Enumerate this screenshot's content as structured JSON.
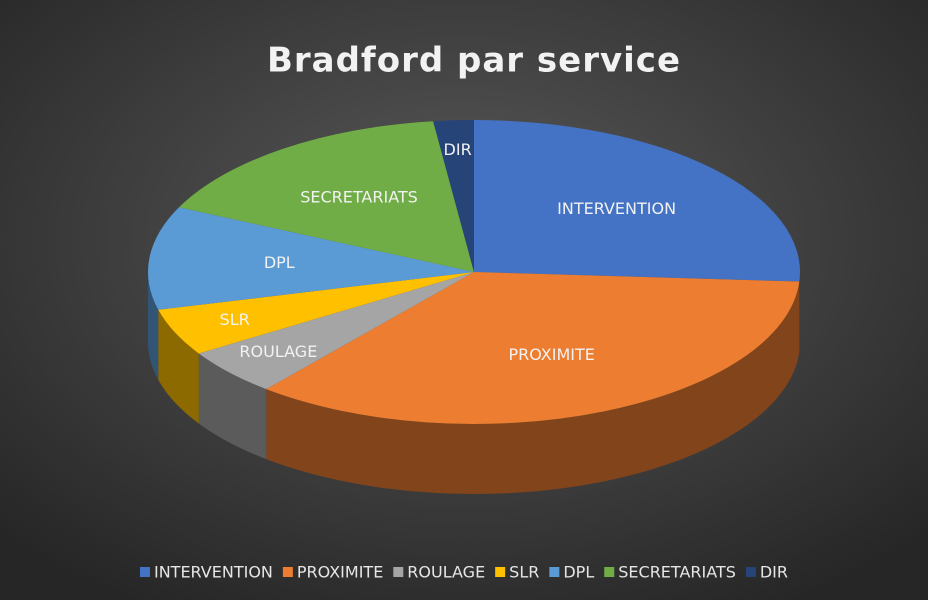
{
  "chart_data": {
    "type": "pie",
    "title": "Bradford par service",
    "categories": [
      "INTERVENTION",
      "PROXIMITE",
      "ROULAGE",
      "SLR",
      "DPL",
      "SECRETARIATS",
      "DIR"
    ],
    "values": [
      26,
      35,
      5,
      5,
      11,
      16,
      2
    ],
    "colors": [
      "#4472c4",
      "#ed7d31",
      "#a5a5a5",
      "#ffc000",
      "#5b9bd5",
      "#70ad47",
      "#264478"
    ],
    "legend": "bottom"
  }
}
